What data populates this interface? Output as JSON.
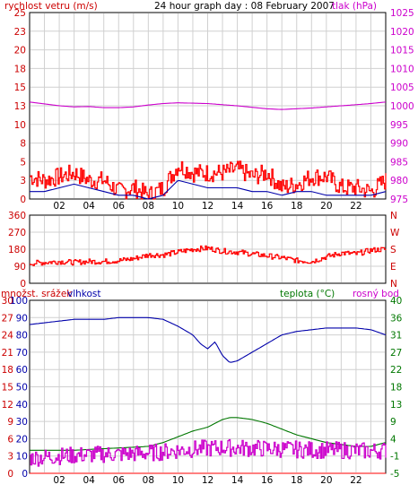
{
  "page": {
    "title": "24 hour graph day : 08 February 2007"
  },
  "x_hour_labels": [
    "02",
    "04",
    "06",
    "08",
    "10",
    "12",
    "14",
    "16",
    "18",
    "20",
    "22"
  ],
  "colors": {
    "wind": "#ff0000",
    "pressure": "#cc00cc",
    "blue": "#0000aa",
    "temp": "#007700",
    "dew": "#cc00cc",
    "left_axis": "#cc0000",
    "grid": "#d0d0d0"
  },
  "chart_data": [
    {
      "type": "line",
      "title": "",
      "left_label": "rychlost vetru (m/s)",
      "right_label": "tlak (hPa)",
      "left_ticks": [
        "0",
        "3",
        "5",
        "8",
        "10",
        "13",
        "15",
        "18",
        "20",
        "23",
        "25"
      ],
      "left_ylim": [
        0,
        25
      ],
      "right_ticks": [
        "975",
        "980",
        "985",
        "990",
        "995",
        "1000",
        "1005",
        "1010",
        "1015",
        "1020",
        "1025"
      ],
      "right_ylim": [
        975,
        1025
      ],
      "xlim": [
        0,
        24
      ],
      "series": [
        {
          "name": "rychlost vetru",
          "axis": "left",
          "color": "#ff0000",
          "style": "noisy",
          "x": [
            0,
            1,
            2,
            3,
            4,
            5,
            6,
            7,
            8,
            9,
            10,
            11,
            12,
            13,
            14,
            15,
            16,
            17,
            18,
            19,
            20,
            21,
            22,
            23,
            24
          ],
          "y": [
            3,
            2.5,
            3,
            3.5,
            2.5,
            2.5,
            1,
            1.5,
            0.5,
            1.5,
            4.5,
            3.5,
            3.5,
            3.5,
            4,
            3,
            3.5,
            1.5,
            2,
            3,
            3,
            1.5,
            1.5,
            1,
            2.5
          ]
        },
        {
          "name": "",
          "axis": "left",
          "color": "#0000aa",
          "style": "smooth",
          "x": [
            0,
            1,
            2,
            3,
            4,
            5,
            6,
            7,
            8,
            9,
            10,
            11,
            12,
            13,
            14,
            15,
            16,
            17,
            18,
            19,
            20,
            21,
            22,
            23,
            24
          ],
          "y": [
            1,
            1,
            1.5,
            2,
            1.5,
            1,
            0.5,
            0.5,
            0,
            0.5,
            2.5,
            2,
            1.5,
            1.5,
            1.5,
            1,
            1,
            0.5,
            1,
            1,
            0.5,
            0.5,
            0.5,
            0.5,
            1
          ]
        },
        {
          "name": "tlak",
          "axis": "right",
          "color": "#cc00cc",
          "style": "smooth",
          "x": [
            0,
            1,
            2,
            3,
            4,
            5,
            6,
            7,
            8,
            9,
            10,
            11,
            12,
            13,
            14,
            15,
            16,
            17,
            18,
            19,
            20,
            21,
            22,
            23,
            24
          ],
          "y": [
            1001,
            1000.5,
            1000,
            999.7,
            999.8,
            999.5,
            999.5,
            999.7,
            1000.2,
            1000.6,
            1000.8,
            1000.7,
            1000.6,
            1000.3,
            1000,
            999.6,
            999.2,
            999,
            999.2,
            999.4,
            999.7,
            1000,
            1000.3,
            1000.6,
            1001
          ]
        }
      ]
    },
    {
      "type": "line",
      "title": "",
      "left_ticks": [
        "0",
        "90",
        "180",
        "270",
        "360"
      ],
      "left_ylim": [
        0,
        360
      ],
      "right_ticks": [
        "N",
        "E",
        "S",
        "W",
        "N"
      ],
      "xlim": [
        0,
        24
      ],
      "series": [
        {
          "name": "",
          "axis": "left",
          "color": "#ff0000",
          "style": "noisy",
          "x": [
            0,
            1,
            2,
            3,
            4,
            5,
            6,
            7,
            8,
            9,
            10,
            11,
            12,
            13,
            14,
            15,
            16,
            17,
            18,
            19,
            20,
            21,
            22,
            23,
            24
          ],
          "y": [
            105,
            110,
            115,
            110,
            115,
            115,
            120,
            130,
            150,
            150,
            165,
            180,
            185,
            170,
            165,
            155,
            145,
            135,
            120,
            115,
            140,
            160,
            155,
            175,
            180
          ]
        }
      ]
    },
    {
      "type": "line",
      "title": "",
      "left_label": "množst. srážek",
      "left_label_2": "vlhkost",
      "right_label": "teplota (°C)",
      "right_label_2": "rosný bod",
      "left_ticks": [
        "0",
        "3",
        "6",
        "9",
        "12",
        "15",
        "18",
        "21",
        "24",
        "27",
        "30"
      ],
      "left_ylim": [
        0,
        30
      ],
      "middle_ticks": [
        "0",
        "10",
        "20",
        "30",
        "40",
        "50",
        "60",
        "70",
        "80",
        "90",
        "100"
      ],
      "middle_ylim": [
        0,
        100
      ],
      "right_ticks": [
        "-5",
        "-1",
        "4",
        "9",
        "13",
        "18",
        "22",
        "27",
        "31",
        "36",
        "40"
      ],
      "right_ylim": [
        -5,
        40
      ],
      "xlim": [
        0,
        24
      ],
      "series": [
        {
          "name": "vlhkost",
          "axis": "middle",
          "color": "#0000aa",
          "style": "smooth",
          "x": [
            0,
            1,
            2,
            3,
            4,
            5,
            6,
            7,
            8,
            9,
            10,
            11,
            11.5,
            12,
            12.5,
            13,
            13.5,
            14,
            15,
            16,
            17,
            18,
            19,
            20,
            21,
            22,
            23,
            24
          ],
          "y": [
            86,
            87,
            88,
            89,
            89,
            89,
            90,
            90,
            90,
            89,
            85,
            80,
            75,
            72,
            76,
            68,
            64,
            65,
            70,
            75,
            80,
            82,
            83,
            84,
            84,
            84,
            83,
            80
          ]
        },
        {
          "name": "teplota",
          "axis": "right",
          "color": "#007700",
          "style": "smooth",
          "x": [
            0,
            1,
            2,
            3,
            4,
            5,
            6,
            7,
            8,
            9,
            10,
            11,
            12,
            12.5,
            13,
            13.5,
            14,
            15,
            16,
            17,
            18,
            19,
            20,
            21,
            22,
            23,
            24
          ],
          "y": [
            1,
            1,
            1,
            1,
            1.2,
            1.4,
            1.6,
            1.8,
            2,
            3,
            4.5,
            6,
            7,
            8,
            9,
            9.5,
            9.5,
            9,
            8,
            6.5,
            5,
            4,
            3,
            2.5,
            2,
            2,
            3
          ]
        },
        {
          "name": "rosný bod",
          "axis": "right",
          "color": "#cc00cc",
          "style": "noisy",
          "x": [
            0,
            1,
            2,
            3,
            4,
            5,
            6,
            7,
            8,
            9,
            10,
            11,
            12,
            13,
            14,
            15,
            16,
            17,
            18,
            19,
            20,
            21,
            22,
            23,
            24
          ],
          "y": [
            -1,
            -0.8,
            -0.5,
            -0.3,
            -0.2,
            0,
            0,
            0.1,
            0.3,
            0.6,
            1,
            1.3,
            1.5,
            1.7,
            1.6,
            1.5,
            1.4,
            1.3,
            1.2,
            1.1,
            1,
            1,
            0.9,
            0.8,
            1
          ]
        },
        {
          "name": "množst. srážek",
          "axis": "left",
          "color": "#ff0000",
          "style": "smooth",
          "x": [
            0,
            24
          ],
          "y": [
            0,
            0
          ]
        }
      ]
    }
  ]
}
